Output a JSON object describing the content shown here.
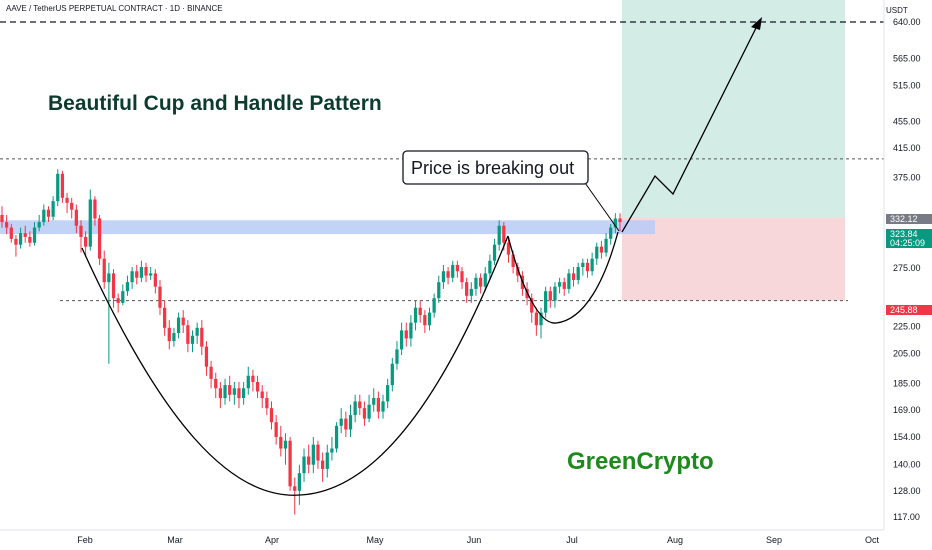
{
  "header": {
    "symbol_line": "AAVE / TetherUS PERPETUAL CONTRACT · 1D · BINANCE",
    "unit": "USDT"
  },
  "chart_data": {
    "type": "candlestick",
    "title": "Beautiful Cup and Handle Pattern",
    "watermark": "GreenCrypto",
    "callout": "Price is breaking out",
    "y_scale": "log",
    "ylim": [
      112,
      730
    ],
    "y_ticks": [
      "640.00",
      "565.00",
      "515.00",
      "455.00",
      "415.00",
      "375.00",
      "275.00",
      "225.00",
      "205.00",
      "185.00",
      "169.00",
      "154.00",
      "140.00",
      "128.00",
      "117.00"
    ],
    "y_tick_values": [
      640,
      565,
      515,
      455,
      415,
      375,
      275,
      225,
      205,
      185,
      169,
      154,
      140,
      128,
      117
    ],
    "x_ticks": [
      "Feb",
      "Mar",
      "Apr",
      "May",
      "Jun",
      "Jul",
      "Aug",
      "Sep",
      "Oct"
    ],
    "price_labels": [
      {
        "text": "332.12",
        "value": 332.12,
        "color": "#787b86"
      },
      {
        "text": "323.84",
        "value": 323.84,
        "color": "#089981"
      },
      {
        "text": "04:25:09",
        "value": 311,
        "color": "#089981"
      },
      {
        "text": "245.88",
        "value": 245.88,
        "color": "#f23645"
      }
    ],
    "levels": {
      "upper_dashed": 640,
      "mid_dashed": 400,
      "lower_dashed": 245.88,
      "resistance_zone": [
        309,
        324
      ]
    },
    "trade": {
      "entry": 327,
      "target": 730,
      "stop": 245.88
    },
    "candles": [
      [
        330,
        322,
        340,
        316
      ],
      [
        322,
        316,
        330,
        309
      ],
      [
        316,
        304,
        320,
        300
      ],
      [
        304,
        298,
        308,
        286
      ],
      [
        298,
        310,
        316,
        294
      ],
      [
        310,
        306,
        318,
        300
      ],
      [
        306,
        300,
        312,
        296
      ],
      [
        300,
        316,
        322,
        297
      ],
      [
        316,
        322,
        330,
        312
      ],
      [
        322,
        336,
        342,
        318
      ],
      [
        336,
        328,
        340,
        322
      ],
      [
        328,
        346,
        352,
        324
      ],
      [
        346,
        380,
        386,
        340
      ],
      [
        380,
        350,
        384,
        344
      ],
      [
        350,
        344,
        356,
        332
      ],
      [
        344,
        336,
        350,
        326
      ],
      [
        336,
        318,
        342,
        310
      ],
      [
        318,
        306,
        324,
        290
      ],
      [
        306,
        296,
        312,
        286
      ],
      [
        296,
        348,
        360,
        292
      ],
      [
        348,
        326,
        352,
        318
      ],
      [
        326,
        284,
        330,
        278
      ],
      [
        284,
        262,
        292,
        256
      ],
      [
        262,
        270,
        280,
        198
      ],
      [
        270,
        248,
        274,
        240
      ],
      [
        248,
        244,
        252,
        236
      ],
      [
        244,
        254,
        260,
        242
      ],
      [
        254,
        262,
        268,
        250
      ],
      [
        262,
        272,
        276,
        256
      ],
      [
        272,
        266,
        278,
        260
      ],
      [
        266,
        276,
        282,
        262
      ],
      [
        276,
        268,
        280,
        262
      ],
      [
        268,
        270,
        276,
        264
      ],
      [
        270,
        258,
        274,
        252
      ],
      [
        258,
        240,
        264,
        234
      ],
      [
        240,
        224,
        246,
        218
      ],
      [
        224,
        214,
        230,
        208
      ],
      [
        214,
        220,
        224,
        210
      ],
      [
        220,
        232,
        236,
        216
      ],
      [
        232,
        226,
        238,
        220
      ],
      [
        226,
        212,
        230,
        206
      ],
      [
        212,
        218,
        222,
        206
      ],
      [
        218,
        224,
        228,
        212
      ],
      [
        224,
        210,
        230,
        204
      ],
      [
        210,
        196,
        214,
        190
      ],
      [
        196,
        188,
        200,
        182
      ],
      [
        188,
        182,
        192,
        176
      ],
      [
        182,
        176,
        186,
        170
      ],
      [
        176,
        184,
        188,
        172
      ],
      [
        184,
        178,
        190,
        174
      ],
      [
        178,
        182,
        186,
        172
      ],
      [
        182,
        176,
        186,
        170
      ],
      [
        176,
        182,
        186,
        172
      ],
      [
        182,
        190,
        196,
        178
      ],
      [
        190,
        186,
        194,
        180
      ],
      [
        186,
        180,
        190,
        176
      ],
      [
        180,
        176,
        184,
        170
      ],
      [
        176,
        170,
        180,
        166
      ],
      [
        170,
        162,
        174,
        158
      ],
      [
        162,
        154,
        166,
        150
      ],
      [
        154,
        148,
        160,
        144
      ],
      [
        148,
        152,
        156,
        140
      ],
      [
        152,
        130,
        154,
        128
      ],
      [
        130,
        128,
        134,
        118
      ],
      [
        128,
        136,
        140,
        122
      ],
      [
        136,
        144,
        148,
        132
      ],
      [
        144,
        140,
        150,
        136
      ],
      [
        140,
        150,
        154,
        136
      ],
      [
        150,
        142,
        152,
        138
      ],
      [
        142,
        138,
        146,
        132
      ],
      [
        138,
        146,
        150,
        134
      ],
      [
        146,
        148,
        154,
        142
      ],
      [
        148,
        160,
        162,
        146
      ],
      [
        160,
        164,
        170,
        156
      ],
      [
        164,
        158,
        168,
        154
      ],
      [
        158,
        166,
        172,
        154
      ],
      [
        166,
        174,
        178,
        162
      ],
      [
        174,
        170,
        178,
        166
      ],
      [
        170,
        164,
        174,
        160
      ],
      [
        164,
        172,
        178,
        162
      ],
      [
        172,
        176,
        182,
        168
      ],
      [
        176,
        168,
        180,
        164
      ],
      [
        168,
        174,
        178,
        164
      ],
      [
        174,
        184,
        188,
        170
      ],
      [
        184,
        198,
        202,
        180
      ],
      [
        198,
        208,
        214,
        194
      ],
      [
        208,
        222,
        228,
        204
      ],
      [
        222,
        216,
        228,
        210
      ],
      [
        216,
        228,
        234,
        210
      ],
      [
        228,
        240,
        246,
        222
      ],
      [
        240,
        234,
        246,
        228
      ],
      [
        234,
        226,
        238,
        220
      ],
      [
        226,
        236,
        240,
        222
      ],
      [
        236,
        248,
        252,
        232
      ],
      [
        248,
        262,
        268,
        244
      ],
      [
        262,
        272,
        278,
        256
      ],
      [
        272,
        266,
        276,
        260
      ],
      [
        266,
        278,
        282,
        262
      ],
      [
        278,
        272,
        282,
        266
      ],
      [
        272,
        262,
        276,
        256
      ],
      [
        262,
        250,
        266,
        244
      ],
      [
        250,
        256,
        262,
        244
      ],
      [
        256,
        266,
        270,
        250
      ],
      [
        266,
        258,
        270,
        252
      ],
      [
        258,
        270,
        276,
        254
      ],
      [
        270,
        282,
        288,
        264
      ],
      [
        282,
        298,
        304,
        278
      ],
      [
        298,
        318,
        324,
        292
      ],
      [
        318,
        300,
        322,
        292
      ],
      [
        300,
        288,
        304,
        280
      ],
      [
        288,
        276,
        292,
        270
      ],
      [
        276,
        268,
        280,
        262
      ],
      [
        268,
        256,
        272,
        250
      ],
      [
        256,
        248,
        262,
        242
      ],
      [
        248,
        236,
        252,
        228
      ],
      [
        236,
        226,
        240,
        218
      ],
      [
        226,
        236,
        240,
        216
      ],
      [
        236,
        254,
        258,
        232
      ],
      [
        254,
        246,
        258,
        240
      ],
      [
        246,
        258,
        262,
        240
      ],
      [
        258,
        262,
        266,
        252
      ],
      [
        262,
        256,
        266,
        250
      ],
      [
        256,
        270,
        274,
        252
      ],
      [
        270,
        264,
        276,
        258
      ],
      [
        264,
        276,
        280,
        260
      ],
      [
        276,
        280,
        284,
        268
      ],
      [
        280,
        272,
        284,
        266
      ],
      [
        272,
        284,
        290,
        268
      ],
      [
        284,
        296,
        300,
        278
      ],
      [
        296,
        290,
        302,
        284
      ],
      [
        290,
        304,
        310,
        286
      ],
      [
        304,
        316,
        320,
        298
      ],
      [
        316,
        326,
        332,
        310
      ],
      [
        326,
        322,
        332,
        312
      ]
    ]
  }
}
